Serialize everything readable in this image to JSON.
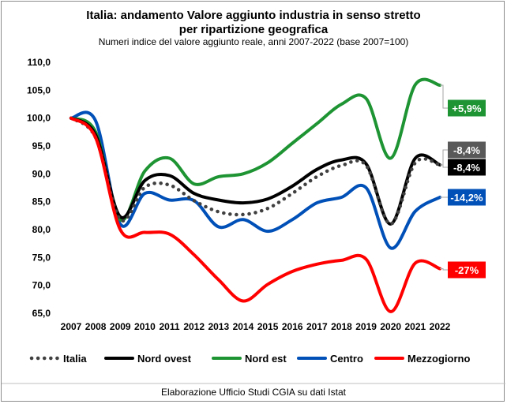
{
  "chart_data": {
    "type": "line",
    "title_line1": "Italia: andamento Valore aggiunto industria in senso stretto",
    "title_line2": "per ripartizione geografica",
    "subtitle": "Numeri indice del valore aggiunto reale, anni 2007-2022 (base 2007=100)",
    "footer": "Elaborazione Ufficio Studi CGIA su dati Istat",
    "x": [
      "2007",
      "2008",
      "2009",
      "2010",
      "2011",
      "2012",
      "2013",
      "2014",
      "2015",
      "2016",
      "2017",
      "2018",
      "2019",
      "2020",
      "2021",
      "2022"
    ],
    "ylim": [
      65,
      110
    ],
    "yticks": [
      "65,0",
      "70,0",
      "75,0",
      "80,0",
      "85,0",
      "90,0",
      "95,0",
      "100,0",
      "105,0",
      "110,0"
    ],
    "grid": false,
    "legend_position": "bottom",
    "series": [
      {
        "name": "Italia",
        "color": "#404040",
        "style": "dotted",
        "values": [
          100,
          96.5,
          81.8,
          87.6,
          88.0,
          85.2,
          83.2,
          82.7,
          83.8,
          86.5,
          89.5,
          91.5,
          91.5,
          81.0,
          92.0,
          91.6
        ],
        "label": "-8,4%",
        "label_bg": "#595959"
      },
      {
        "name": "Nord ovest",
        "color": "#000000",
        "style": "solid",
        "values": [
          100,
          97.0,
          82.3,
          88.8,
          89.7,
          86.5,
          85.3,
          84.8,
          85.5,
          87.8,
          90.8,
          92.5,
          91.8,
          81.0,
          92.8,
          91.6
        ],
        "label": "-8,4%",
        "label_bg": "#000000"
      },
      {
        "name": "Nord est",
        "color": "#1e9433",
        "style": "solid",
        "values": [
          100,
          97.5,
          81.8,
          90.5,
          92.8,
          88.2,
          89.5,
          90.0,
          92.0,
          95.5,
          99.0,
          102.5,
          103.5,
          92.8,
          106.0,
          105.9
        ],
        "label": "+5,9%",
        "label_bg": "#1e9433"
      },
      {
        "name": "Centro",
        "color": "#0050b8",
        "style": "solid",
        "values": [
          100,
          99.5,
          81.0,
          86.5,
          85.3,
          85.2,
          80.5,
          81.8,
          79.7,
          81.8,
          84.8,
          85.8,
          87.5,
          76.7,
          83.3,
          85.8
        ],
        "label": "-14,2%",
        "label_bg": "#0050b8"
      },
      {
        "name": "Mezzogiorno",
        "color": "#ff0000",
        "style": "solid",
        "values": [
          100,
          96.5,
          80.0,
          79.5,
          79.2,
          75.5,
          71.0,
          67.2,
          70.2,
          72.5,
          73.8,
          74.5,
          74.7,
          65.3,
          74.0,
          73.0
        ],
        "label": "-27%",
        "label_bg": "#ff0000"
      }
    ]
  }
}
